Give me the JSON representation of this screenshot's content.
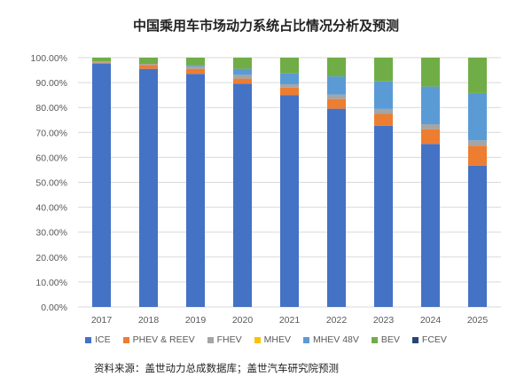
{
  "chart_data": {
    "type": "bar",
    "stacked": true,
    "title": "中国乘用车市场动力系统占比情况分析及预测",
    "categories": [
      "2017",
      "2018",
      "2019",
      "2020",
      "2021",
      "2022",
      "2023",
      "2024",
      "2025"
    ],
    "ylim": [
      0,
      100
    ],
    "yticks": [
      "0.00%",
      "10.00%",
      "20.00%",
      "30.00%",
      "40.00%",
      "50.00%",
      "60.00%",
      "70.00%",
      "80.00%",
      "90.00%",
      "100.00%"
    ],
    "grid": true,
    "legend_position": "bottom",
    "series": [
      {
        "name": "ICE",
        "color": "#4472C4",
        "values": [
          97.5,
          95.5,
          93.5,
          89.6,
          85.0,
          79.5,
          72.7,
          65.4,
          56.7
        ]
      },
      {
        "name": "PHEV & REEV",
        "color": "#ED7D31",
        "values": [
          0.5,
          1.5,
          2.0,
          2.0,
          3.0,
          3.9,
          4.7,
          5.9,
          8.0
        ]
      },
      {
        "name": "FHEV",
        "color": "#A5A5A5",
        "values": [
          0.5,
          0.5,
          1.0,
          1.5,
          1.3,
          1.8,
          2.0,
          2.0,
          2.1
        ]
      },
      {
        "name": "MHEV",
        "color": "#FFC000",
        "values": [
          0,
          0,
          0,
          0,
          0,
          0,
          0,
          0,
          0
        ]
      },
      {
        "name": "MHEV 48V",
        "color": "#5B9BD5",
        "values": [
          0,
          0,
          0.5,
          2.4,
          4.4,
          7.3,
          11.1,
          15.1,
          19.0
        ]
      },
      {
        "name": "BEV",
        "color": "#70AD47",
        "values": [
          1.5,
          2.5,
          3.0,
          4.5,
          6.3,
          7.5,
          9.5,
          11.6,
          14.2
        ]
      },
      {
        "name": "FCEV",
        "color": "#264478",
        "values": [
          0,
          0,
          0,
          0,
          0,
          0,
          0,
          0,
          0
        ]
      }
    ]
  },
  "source": "资料来源：盖世动力总成数据库；盖世汽车研究院预测"
}
